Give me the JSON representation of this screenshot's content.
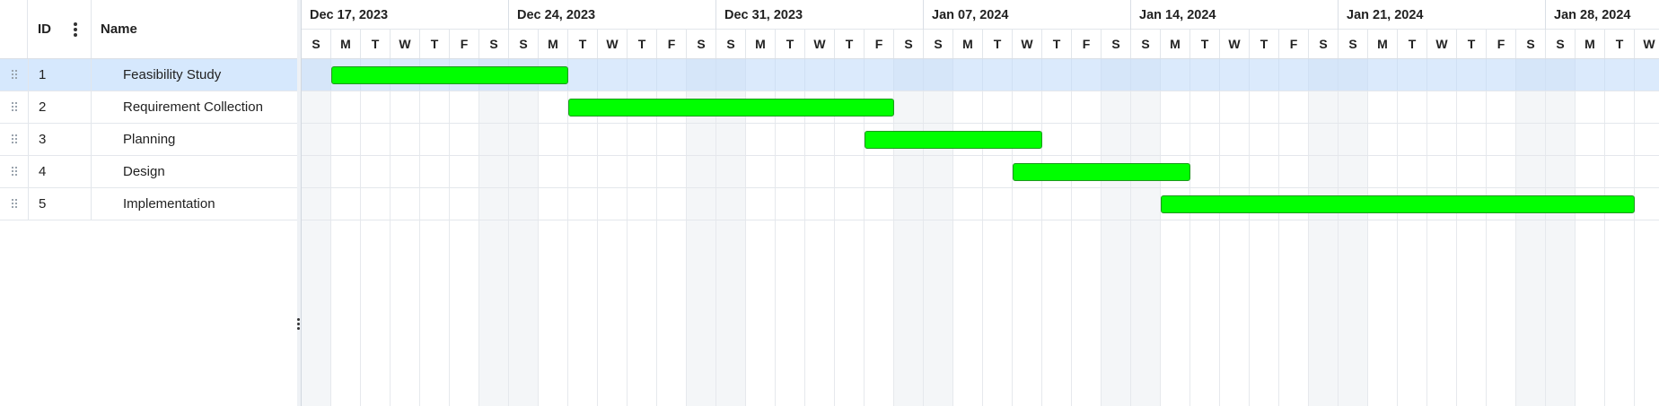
{
  "grid": {
    "columns": {
      "id": "ID",
      "name": "Name"
    },
    "rows": [
      {
        "id": "1",
        "name": "Feasibility Study",
        "selected": true
      },
      {
        "id": "2",
        "name": "Requirement Collection",
        "selected": false
      },
      {
        "id": "3",
        "name": "Planning",
        "selected": false
      },
      {
        "id": "4",
        "name": "Design",
        "selected": false
      },
      {
        "id": "5",
        "name": "Implementation",
        "selected": false
      }
    ]
  },
  "timeline": {
    "weeks": [
      "Dec 17, 2023",
      "Dec 24, 2023",
      "Dec 31, 2023",
      "Jan 07, 2024",
      "Jan 14, 2024",
      "Jan 21, 2024",
      "Jan 28, 2024"
    ],
    "day_letters": [
      "S",
      "M",
      "T",
      "W",
      "T",
      "F",
      "S"
    ],
    "visible_days": 46
  },
  "tasks": [
    {
      "name": "Feasibility Study",
      "start": "2023-12-18",
      "end": "2023-12-26"
    },
    {
      "name": "Requirement Collection",
      "start": "2023-12-26",
      "end": "2024-01-06"
    },
    {
      "name": "Planning",
      "start": "2024-01-05",
      "end": "2024-01-11"
    },
    {
      "name": "Design",
      "start": "2024-01-10",
      "end": "2024-01-16"
    },
    {
      "name": "Implementation",
      "start": "2024-01-15",
      "end": "2024-01-31"
    }
  ],
  "colors": {
    "bar_fill": "#00ff00",
    "bar_border": "#1d9a1d",
    "selected_row": "#d6e8fd",
    "weekend": "#f4f6f8"
  }
}
